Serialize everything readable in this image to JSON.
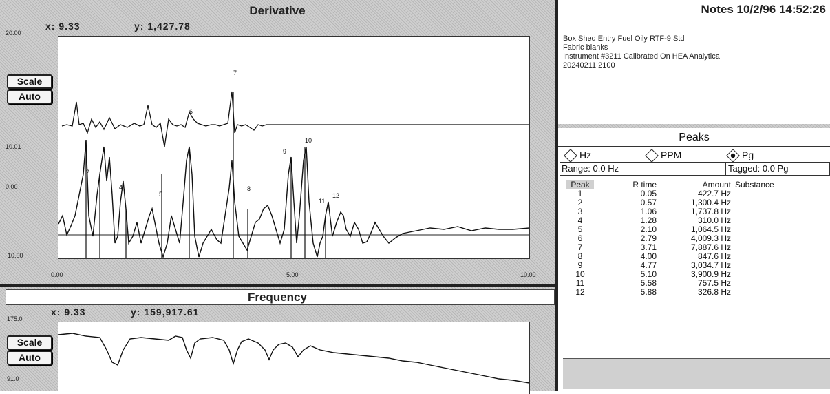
{
  "derivative": {
    "title": "Derivative",
    "x_readout": "x: 9.33",
    "y_readout": "y: 1,427.78",
    "scale_label": "Scale",
    "auto_label": "Auto",
    "y_ticks": [
      "20.00",
      "10.01",
      "0.00",
      "-10.00"
    ],
    "x_tick_start": "0.00",
    "x_tick_mid": "5.00",
    "x_tick_end": "10.00"
  },
  "frequency": {
    "title": "Frequency",
    "x_readout": "x: 9.33",
    "y_readout": "y: 159,917.61",
    "scale_label": "Scale",
    "auto_label": "Auto",
    "y_ticks": [
      "175.0",
      "91.0"
    ]
  },
  "notes": {
    "title": "Notes 10/2/96 14:52:26",
    "body": "Box Shed Entry Fuel Oily RTF-9 Std\nFabric blanks\nInstrument #3211 Calibrated On HEA Analytica\n20240211 2100"
  },
  "peaks": {
    "title": "Peaks",
    "radio_hz": "Hz",
    "radio_ppm": "PPM",
    "radio_pg": "Pg",
    "range_label": "Range: 0.0 Hz",
    "tagged_label": "Tagged: 0.0 Pg",
    "col_peak": "Peak",
    "col_rtime": "R time",
    "col_amount": "Amount",
    "col_substance": "Substance",
    "rows": [
      {
        "peak": "1",
        "rtime": "0.05",
        "amount": "422.7 Hz"
      },
      {
        "peak": "2",
        "rtime": "0.57",
        "amount": "1,300.4 Hz"
      },
      {
        "peak": "3",
        "rtime": "1.06",
        "amount": "1,737.8 Hz"
      },
      {
        "peak": "4",
        "rtime": "1.28",
        "amount": "310.0 Hz"
      },
      {
        "peak": "5",
        "rtime": "2.10",
        "amount": "1,064.5 Hz"
      },
      {
        "peak": "6",
        "rtime": "2.79",
        "amount": "4,009.3 Hz"
      },
      {
        "peak": "7",
        "rtime": "3.71",
        "amount": "7,887.6 Hz"
      },
      {
        "peak": "8",
        "rtime": "4.00",
        "amount": "847.6 Hz"
      },
      {
        "peak": "9",
        "rtime": "4.77",
        "amount": "3,034.7 Hz"
      },
      {
        "peak": "10",
        "rtime": "5.10",
        "amount": "3,900.9 Hz"
      },
      {
        "peak": "11",
        "rtime": "5.58",
        "amount": "757.5 Hz"
      },
      {
        "peak": "12",
        "rtime": "5.88",
        "amount": "326.8 Hz"
      }
    ]
  },
  "peak_marker_labels": [
    "2",
    "4",
    "5",
    "6",
    "7",
    "8",
    "9",
    "10",
    "11",
    "12"
  ]
}
